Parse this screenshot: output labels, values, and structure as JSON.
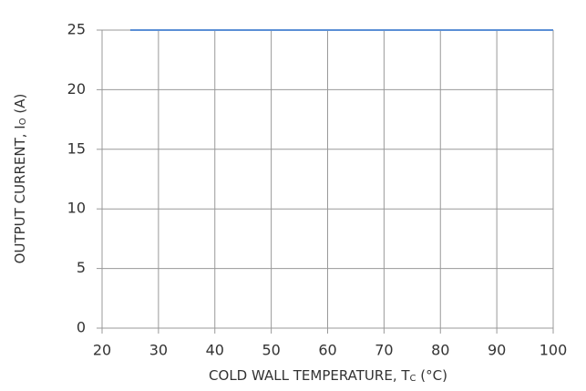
{
  "chart_data": {
    "type": "line",
    "xlabel": [
      "COLD WALL TEMPERATURE, T",
      "C",
      " (°C)"
    ],
    "ylabel": [
      "OUTPUT CURRENT, I",
      "O",
      " (A)"
    ],
    "x": [
      25,
      100
    ],
    "series": [
      {
        "color": "#5b8fd6",
        "values": [
          25,
          25
        ]
      }
    ],
    "xlim": [
      20,
      100
    ],
    "xticks": [
      20,
      30,
      40,
      50,
      60,
      70,
      80,
      90,
      100
    ],
    "ylim": [
      0,
      25
    ],
    "yticks": [
      0,
      5,
      10,
      15,
      20,
      25
    ],
    "grid": true
  }
}
